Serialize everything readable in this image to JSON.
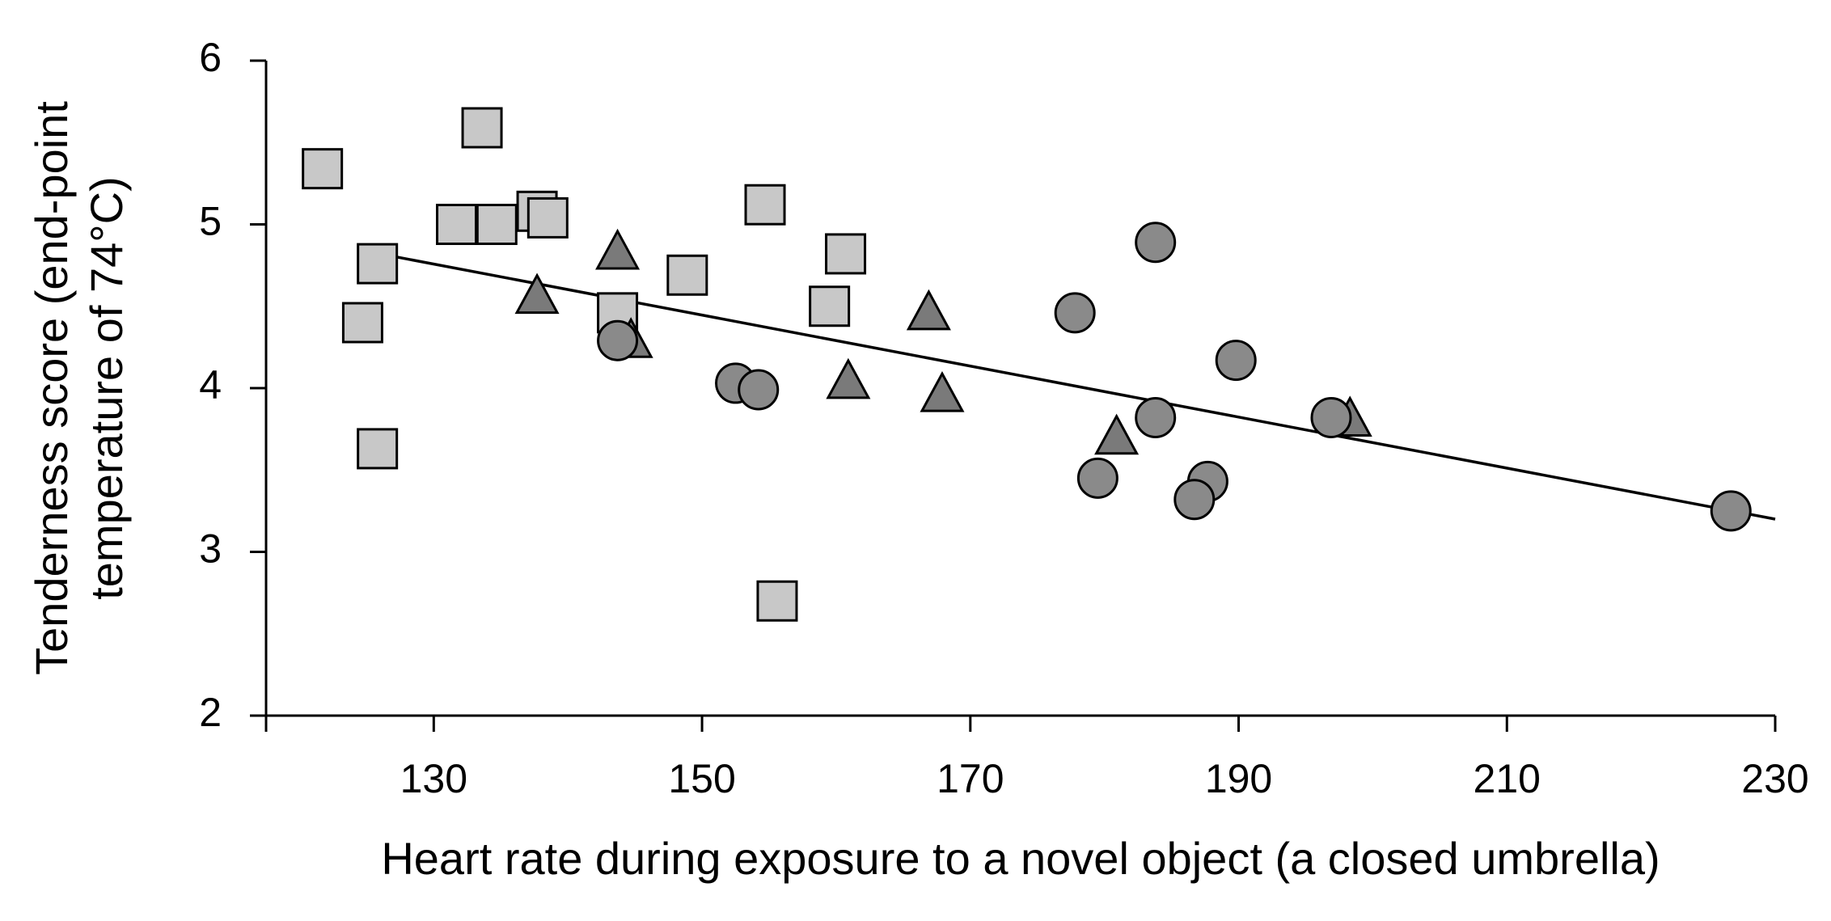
{
  "chart_data": {
    "type": "scatter",
    "x_label": "Heart rate during exposure to a novel object (a closed umbrella)",
    "y_label": [
      "Tenderness score (end-point",
      "temperature of 74°C)"
    ],
    "xlim": [
      117.5,
      230
    ],
    "xticks": [
      130,
      150,
      170,
      190,
      210,
      230
    ],
    "ylim": [
      2,
      6
    ],
    "yticks": [
      2,
      3,
      4,
      5,
      6
    ],
    "series": [
      {
        "marker": "square",
        "color": "#c8c8c8",
        "x": [
          121.7,
          133.6,
          131.7,
          134.7,
          137.7,
          138.5,
          125.8,
          124.7,
          125.8,
          143.7,
          148.9,
          154.7,
          155.6,
          160.7,
          159.5
        ],
        "y": [
          5.34,
          5.59,
          5.0,
          5.0,
          5.08,
          5.04,
          4.76,
          4.4,
          3.63,
          4.46,
          4.69,
          5.12,
          2.7,
          4.82,
          4.5
        ]
      },
      {
        "marker": "triangle",
        "color": "#7a7a7a",
        "x": [
          143.7,
          137.7,
          144.7,
          160.9,
          166.9,
          167.9,
          180.9,
          198.3
        ],
        "y": [
          4.82,
          4.55,
          4.28,
          4.03,
          4.45,
          3.95,
          3.69,
          3.8
        ]
      },
      {
        "marker": "circle",
        "color": "#8a8a8a",
        "x": [
          143.7,
          152.5,
          154.2,
          177.8,
          183.8,
          183.8,
          189.8,
          179.5,
          187.7,
          186.7,
          196.9,
          226.7
        ],
        "y": [
          4.29,
          4.03,
          3.99,
          4.46,
          4.89,
          3.82,
          4.17,
          3.45,
          3.43,
          3.32,
          3.82,
          3.25
        ]
      }
    ],
    "trendline": {
      "color": "#000000",
      "x": [
        126,
        230
      ],
      "y": [
        4.82,
        3.2
      ]
    }
  }
}
